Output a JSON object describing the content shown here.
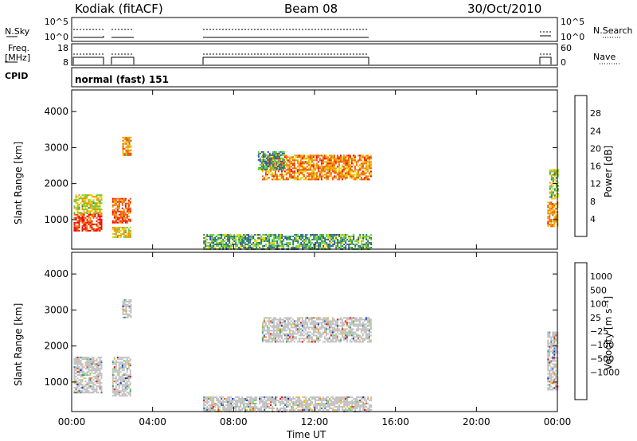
{
  "header": {
    "station": "Kodiak (fitACF)",
    "beam": "Beam 08",
    "date": "30/Oct/2010"
  },
  "panels": {
    "noise": {
      "left_label": "N.Sky",
      "right_label": "N.Search",
      "left_ticks": [
        "10^5",
        "10^0"
      ],
      "right_ticks": [
        "10^5",
        "10^0"
      ]
    },
    "freq": {
      "left_label_1": "Freq.",
      "left_label_2": "[MHz]",
      "right_label": "Nave",
      "left_ticks": [
        "18",
        "8"
      ],
      "right_ticks": [
        "60",
        "0"
      ]
    },
    "cpid": {
      "label": "CPID",
      "text": "normal (fast) 151"
    }
  },
  "axes": {
    "ylabel": "Slant Range [km]",
    "yticks": [
      "1000",
      "2000",
      "3000",
      "4000"
    ],
    "xlabel": "Time UT",
    "xticks": [
      "00:00",
      "04:00",
      "08:00",
      "12:00",
      "16:00",
      "20:00",
      "00:00"
    ]
  },
  "chart_data": [
    {
      "type": "heatmap",
      "name": "power",
      "x_range_hours": [
        0,
        24
      ],
      "y_range_km": [
        180,
        4600
      ],
      "colorbar": {
        "label": "Power [dB]",
        "ticks": [
          "4",
          "8",
          "12",
          "16",
          "20",
          "24",
          "28"
        ],
        "colors": [
          "#1010f0",
          "#3050b0",
          "#308060",
          "#60d040",
          "#e8d000",
          "#f09000",
          "#f05000",
          "#f00000"
        ]
      },
      "blobs": [
        {
          "t0": 0.1,
          "t1": 1.5,
          "r0": 700,
          "r1": 1200,
          "level": 0.9
        },
        {
          "t0": 0.1,
          "t1": 1.5,
          "r0": 1200,
          "r1": 1700,
          "level": 0.55
        },
        {
          "t0": 2.0,
          "t1": 2.9,
          "r0": 900,
          "r1": 1600,
          "level": 0.85
        },
        {
          "t0": 2.5,
          "t1": 2.9,
          "r0": 2800,
          "r1": 3300,
          "level": 0.7
        },
        {
          "t0": 2.0,
          "t1": 2.9,
          "r0": 500,
          "r1": 800,
          "level": 0.6
        },
        {
          "t0": 9.4,
          "t1": 14.8,
          "r0": 2100,
          "r1": 2800,
          "level": 0.75
        },
        {
          "t0": 9.2,
          "t1": 10.5,
          "r0": 2400,
          "r1": 2900,
          "level": 0.3
        },
        {
          "t0": 6.5,
          "t1": 14.8,
          "r0": 200,
          "r1": 600,
          "level": 0.35
        },
        {
          "t0": 23.5,
          "t1": 24.0,
          "r0": 800,
          "r1": 1500,
          "level": 0.75
        },
        {
          "t0": 23.6,
          "t1": 24.0,
          "r0": 1600,
          "r1": 2400,
          "level": 0.5
        }
      ]
    },
    {
      "type": "heatmap",
      "name": "velocity",
      "x_range_hours": [
        0,
        24
      ],
      "y_range_km": [
        180,
        4600
      ],
      "colorbar": {
        "label": "Velocity [m s⁻¹]",
        "ticks": [
          "1000",
          "500",
          "100",
          "25",
          "−25",
          "−100",
          "−500",
          "−1000"
        ],
        "colors": [
          "#1020d0",
          "#2f6fb0",
          "#2fa070",
          "#60d040",
          "#c0c0c0",
          "#c0c0c0",
          "#f0c000",
          "#f09000",
          "#f05000",
          "#f00000"
        ]
      },
      "blobs": [
        {
          "t0": 0.1,
          "t1": 1.5,
          "r0": 700,
          "r1": 1700,
          "level": 0.5
        },
        {
          "t0": 2.0,
          "t1": 2.9,
          "r0": 600,
          "r1": 1700,
          "level": 0.5
        },
        {
          "t0": 2.5,
          "t1": 2.9,
          "r0": 2800,
          "r1": 3300,
          "level": 0.75
        },
        {
          "t0": 9.4,
          "t1": 14.8,
          "r0": 2100,
          "r1": 2800,
          "level": 0.5
        },
        {
          "t0": 6.5,
          "t1": 14.8,
          "r0": 200,
          "r1": 600,
          "level": 0.55
        },
        {
          "t0": 23.5,
          "t1": 24.0,
          "r0": 800,
          "r1": 2400,
          "level": 0.5
        }
      ]
    }
  ]
}
